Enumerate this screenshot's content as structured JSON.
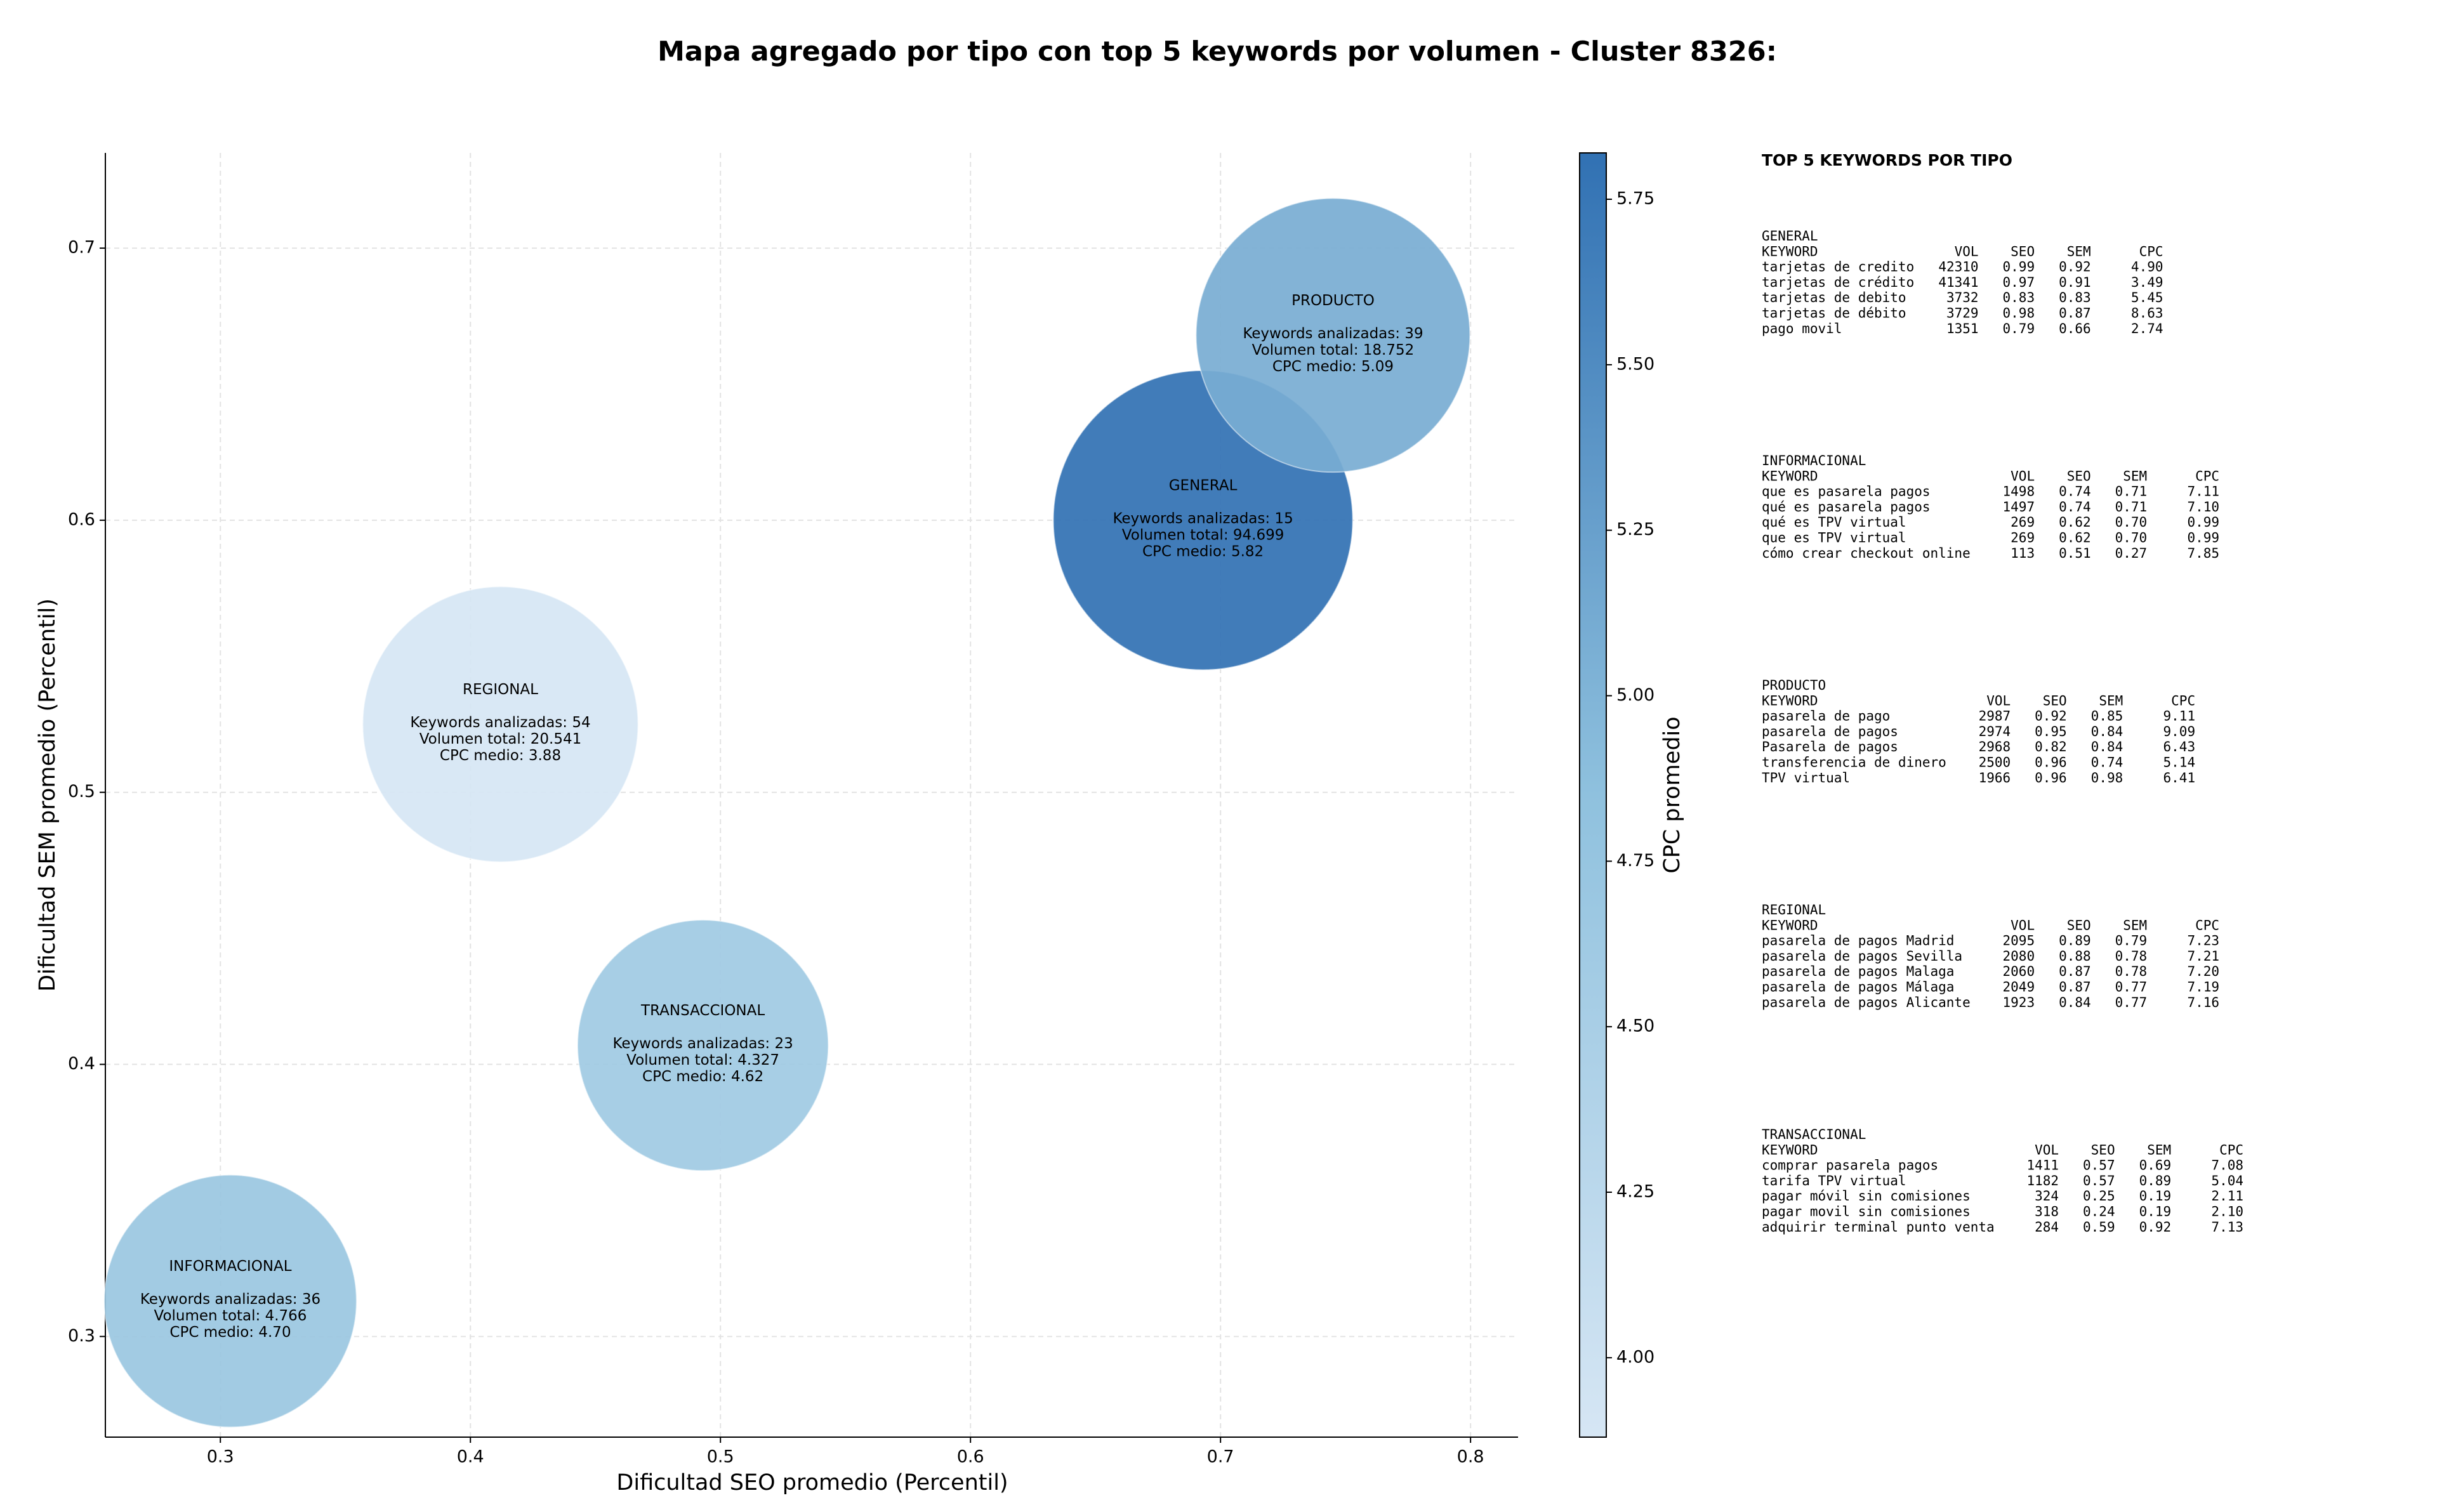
{
  "chart_data": {
    "type": "scatter",
    "title": "Mapa agregado por tipo con top 5 keywords por volumen - Cluster 8326:",
    "xlabel": "Dificultad SEO promedio (Percentil)",
    "ylabel": "Dificultad SEM promedio (Percentil)",
    "x": [
      0.693,
      0.304,
      0.745,
      0.412,
      0.493
    ],
    "y": [
      0.6,
      0.313,
      0.668,
      0.525,
      0.407
    ],
    "sizes": [
      94699,
      4766,
      18752,
      20541,
      4327
    ],
    "c": [
      5.82,
      4.7,
      5.09,
      3.88,
      4.62
    ],
    "point_labels": [
      [
        "GENERAL",
        "Keywords analizadas: 15",
        "Volumen total: 94.699",
        "CPC medio: 5.82"
      ],
      [
        "INFORMACIONAL",
        "Keywords analizadas: 36",
        "Volumen total: 4.766",
        "CPC medio: 4.70"
      ],
      [
        "PRODUCTO",
        "Keywords analizadas: 39",
        "Volumen total: 18.752",
        "CPC medio: 5.09"
      ],
      [
        "REGIONAL",
        "Keywords analizadas: 54",
        "Volumen total: 20.541",
        "CPC medio: 3.88"
      ],
      [
        "TRANSACCIONAL",
        "Keywords analizadas: 23",
        "Volumen total: 4.327",
        "CPC medio: 4.62"
      ]
    ],
    "xlim": [
      0.254,
      0.819
    ],
    "ylim": [
      0.263,
      0.735
    ],
    "xticks": [
      0.3,
      0.4,
      0.5,
      0.6,
      0.7,
      0.8
    ],
    "yticks": [
      0.3,
      0.4,
      0.5,
      0.6,
      0.7
    ],
    "grid": true,
    "colorbar": {
      "label": "CPC promedio",
      "lim": [
        3.88,
        5.82
      ],
      "colormap": [
        "#d6e6f4",
        "#8fc1de",
        "#3171b3"
      ],
      "ticks": [
        {
          "value": 4,
          "label": "4.00"
        },
        {
          "value": 4.25,
          "label": "4.25"
        },
        {
          "value": 4.5,
          "label": "4.50"
        },
        {
          "value": 4.75,
          "label": "4.75"
        },
        {
          "value": 5,
          "label": "5.00"
        },
        {
          "value": 5.25,
          "label": "5.25"
        },
        {
          "value": 5.5,
          "label": "5.50"
        },
        {
          "value": 5.75,
          "label": "5.75"
        }
      ]
    }
  },
  "side_panel": {
    "title": "TOP 5 KEYWORDS POR TIPO",
    "sections": [
      {
        "name": "GENERAL",
        "header": [
          "KEYWORD",
          "VOL",
          "SEO",
          "SEM",
          "CPC"
        ],
        "rows": [
          [
            "tarjetas de credito",
            "42310",
            "0.99",
            "0.92",
            "4.90"
          ],
          [
            "tarjetas de crédito",
            "41341",
            "0.97",
            "0.91",
            "3.49"
          ],
          [
            "tarjetas de debito",
            "3732",
            "0.83",
            "0.83",
            "5.45"
          ],
          [
            "tarjetas de débito",
            "3729",
            "0.98",
            "0.87",
            "8.63"
          ],
          [
            "pago movil",
            "1351",
            "0.79",
            "0.66",
            "2.74"
          ]
        ]
      },
      {
        "name": "INFORMACIONAL",
        "header": [
          "KEYWORD",
          "VOL",
          "SEO",
          "SEM",
          "CPC"
        ],
        "rows": [
          [
            "que es pasarela pagos",
            "1498",
            "0.74",
            "0.71",
            "7.11"
          ],
          [
            "qué es pasarela pagos",
            "1497",
            "0.74",
            "0.71",
            "7.10"
          ],
          [
            "qué es TPV virtual",
            "269",
            "0.62",
            "0.70",
            "0.99"
          ],
          [
            "que es TPV virtual",
            "269",
            "0.62",
            "0.70",
            "0.99"
          ],
          [
            "cómo crear checkout online",
            "113",
            "0.51",
            "0.27",
            "7.85"
          ]
        ]
      },
      {
        "name": "PRODUCTO",
        "header": [
          "KEYWORD",
          "VOL",
          "SEO",
          "SEM",
          "CPC"
        ],
        "rows": [
          [
            "pasarela de pago",
            "2987",
            "0.92",
            "0.85",
            "9.11"
          ],
          [
            "pasarela de pagos",
            "2974",
            "0.95",
            "0.84",
            "9.09"
          ],
          [
            "Pasarela de pagos",
            "2968",
            "0.82",
            "0.84",
            "6.43"
          ],
          [
            "transferencia de dinero",
            "2500",
            "0.96",
            "0.74",
            "5.14"
          ],
          [
            "TPV virtual",
            "1966",
            "0.96",
            "0.98",
            "6.41"
          ]
        ]
      },
      {
        "name": "REGIONAL",
        "header": [
          "KEYWORD",
          "VOL",
          "SEO",
          "SEM",
          "CPC"
        ],
        "rows": [
          [
            "pasarela de pagos Madrid",
            "2095",
            "0.89",
            "0.79",
            "7.23"
          ],
          [
            "pasarela de pagos Sevilla",
            "2080",
            "0.88",
            "0.78",
            "7.21"
          ],
          [
            "pasarela de pagos Malaga",
            "2060",
            "0.87",
            "0.78",
            "7.20"
          ],
          [
            "pasarela de pagos Málaga",
            "2049",
            "0.87",
            "0.77",
            "7.19"
          ],
          [
            "pasarela de pagos Alicante",
            "1923",
            "0.84",
            "0.77",
            "7.16"
          ]
        ]
      },
      {
        "name": "TRANSACCIONAL",
        "header": [
          "KEYWORD",
          "VOL",
          "SEO",
          "SEM",
          "CPC"
        ],
        "rows": [
          [
            "comprar pasarela pagos",
            "1411",
            "0.57",
            "0.69",
            "7.08"
          ],
          [
            "tarifa TPV virtual",
            "1182",
            "0.57",
            "0.89",
            "5.04"
          ],
          [
            "pagar móvil sin comisiones",
            "324",
            "0.25",
            "0.19",
            "2.11"
          ],
          [
            "pagar movil sin comisiones",
            "318",
            "0.24",
            "0.19",
            "2.10"
          ],
          [
            "adquirir terminal punto venta",
            "284",
            "0.59",
            "0.92",
            "7.13"
          ]
        ]
      }
    ]
  }
}
